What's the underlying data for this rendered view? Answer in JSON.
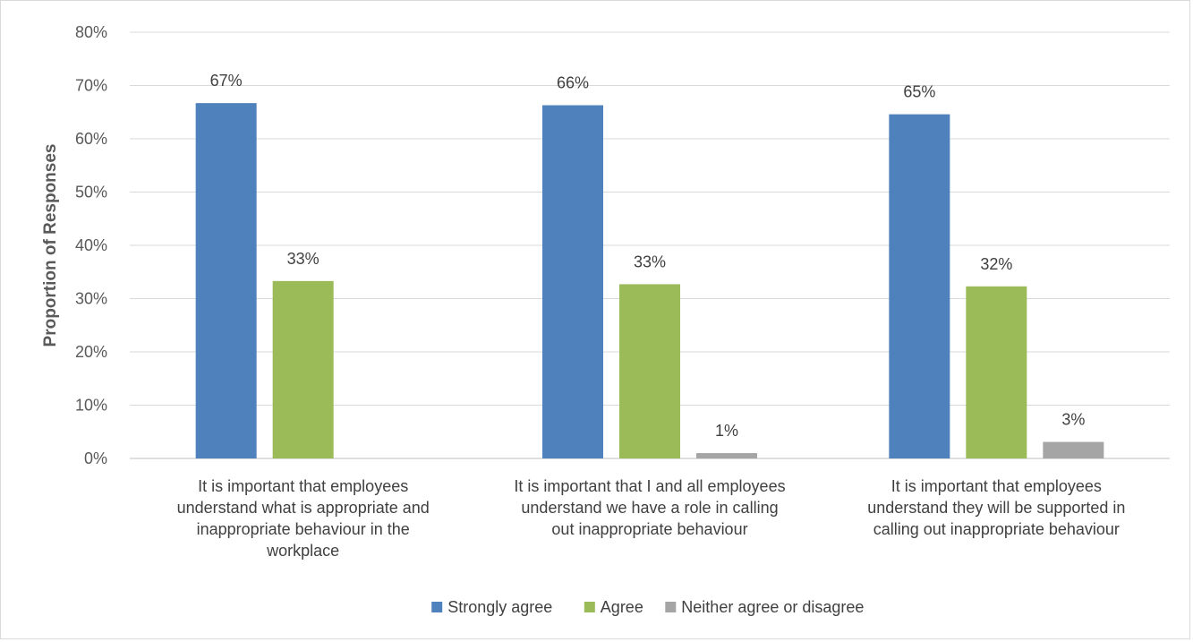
{
  "chart_data": {
    "type": "bar",
    "title": "",
    "xlabel": "",
    "ylabel": "Proportion of Responses",
    "ylim": [
      0,
      80
    ],
    "yticks": [
      "0%",
      "10%",
      "20%",
      "30%",
      "40%",
      "50%",
      "60%",
      "70%",
      "80%"
    ],
    "grid": true,
    "legend_position": "bottom",
    "categories": [
      [
        "It is important that employees",
        "understand what is appropriate and",
        "inappropriate behaviour in the",
        "workplace"
      ],
      [
        "It is important that I and all employees",
        "understand we have a role in calling",
        "out inappropriate behaviour"
      ],
      [
        "It is important that employees",
        "understand they will be supported in",
        "calling out inappropriate behaviour"
      ]
    ],
    "series": [
      {
        "name": "Strongly agree",
        "color": "#4f81bd",
        "values": [
          66.7,
          66.3,
          64.6
        ],
        "labels": [
          "67%",
          "66%",
          "65%"
        ]
      },
      {
        "name": "Agree",
        "color": "#9bbb59",
        "values": [
          33.3,
          32.7,
          32.3
        ],
        "labels": [
          "33%",
          "33%",
          "32%"
        ]
      },
      {
        "name": "Neither agree or disagree",
        "color": "#a5a5a5",
        "values": [
          null,
          1.0,
          3.1
        ],
        "labels": [
          null,
          "1%",
          "3%"
        ]
      }
    ]
  }
}
